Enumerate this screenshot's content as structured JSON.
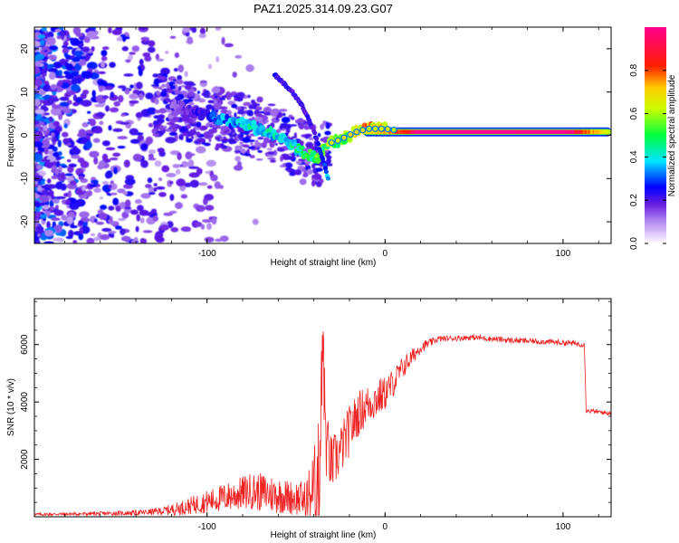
{
  "title": "PAZ1.2025.314.09.23.G07",
  "chart_data": [
    {
      "type": "heatmap",
      "title": "PAZ1.2025.314.09.23.G07",
      "xlabel": "Height of straight line (km)",
      "ylabel": "Frequency (Hz)",
      "xlim": [
        -197,
        127
      ],
      "ylim": [
        -25,
        25
      ],
      "xticks": [
        -100,
        0,
        100
      ],
      "xtick_labels": [
        "-100",
        "0",
        "100"
      ],
      "yticks": [
        -20,
        -10,
        0,
        10,
        20
      ],
      "ytick_labels": [
        "-20",
        "-10",
        "0",
        "10",
        "20"
      ],
      "main_branch": {
        "x": [
          -120,
          -105,
          -95,
          -85,
          -75,
          -65,
          -55,
          -45,
          -38,
          -32,
          -25,
          -18,
          -10,
          0,
          10,
          20,
          40,
          60,
          80,
          100,
          127
        ],
        "y": [
          7,
          5,
          4,
          3,
          2,
          0.5,
          -1.5,
          -4,
          -5,
          -2,
          -1,
          0.5,
          1.5,
          1.5,
          1,
          0.8,
          0.8,
          0.8,
          0.8,
          0.8,
          0.8
        ],
        "amplitude": [
          0.05,
          0.15,
          0.2,
          0.25,
          0.3,
          0.3,
          0.3,
          0.35,
          0.4,
          0.45,
          0.5,
          0.5,
          0.6,
          0.65,
          0.75,
          0.9,
          0.95,
          0.92,
          0.85,
          0.9,
          0.5
        ]
      },
      "secondary_branch": {
        "x": [
          -62,
          -57,
          -52,
          -47,
          -43,
          -40,
          -37,
          -34,
          -32
        ],
        "y": [
          14,
          12,
          10,
          7,
          4,
          1,
          -3,
          -7,
          -10
        ],
        "amplitude": [
          0.15,
          0.12,
          0.12,
          0.12,
          0.12,
          0.12,
          0.15,
          0.2,
          0.25
        ]
      },
      "colorbar": {
        "label": "Normalized spectral amplitude",
        "min": 0.0,
        "max": 1.0,
        "ticks": [
          0.0,
          0.2,
          0.4,
          0.6,
          0.8
        ],
        "tick_labels": [
          "0.0",
          "0.2",
          "0.4",
          "0.6",
          "0.8"
        ],
        "colors": [
          "#ffffff",
          "#b38cf0",
          "#6a1ee0",
          "#0000ff",
          "#00e5ff",
          "#00ff40",
          "#c8ff00",
          "#ffcc00",
          "#ff2000",
          "#ff0090"
        ]
      }
    },
    {
      "type": "line",
      "xlabel": "Height of straight line (km)",
      "ylabel": "SNR (10 * v/v)",
      "xlim": [
        -197,
        127
      ],
      "ylim": [
        0,
        7600
      ],
      "xticks": [
        -100,
        0,
        100
      ],
      "xtick_labels": [
        "-100",
        "0",
        "100"
      ],
      "yticks": [
        2000,
        4000,
        6000
      ],
      "ytick_labels": [
        "2000",
        "4000",
        "6000"
      ],
      "line_color": "#ee2222",
      "series": [
        {
          "name": "SNR",
          "x": [
            -197,
            -170,
            -150,
            -135,
            -125,
            -115,
            -105,
            -95,
            -85,
            -75,
            -65,
            -55,
            -45,
            -40,
            -37,
            -35,
            -33,
            -30,
            -25,
            -20,
            -15,
            -10,
            -5,
            0,
            5,
            10,
            20,
            30,
            50,
            70,
            90,
            105,
            112,
            113,
            120,
            127
          ],
          "y": [
            80,
            100,
            120,
            150,
            200,
            300,
            450,
            600,
            750,
            900,
            800,
            700,
            600,
            900,
            1500,
            5500,
            2500,
            1800,
            2300,
            3000,
            3600,
            3900,
            4100,
            4300,
            4700,
            5200,
            5900,
            6200,
            6250,
            6150,
            6100,
            6050,
            6000,
            3700,
            3650,
            3600
          ],
          "noise": [
            50,
            60,
            80,
            100,
            150,
            250,
            350,
            450,
            550,
            650,
            700,
            600,
            650,
            1500,
            2000,
            1500,
            1200,
            1000,
            900,
            900,
            800,
            700,
            700,
            600,
            500,
            400,
            200,
            100,
            100,
            100,
            100,
            100,
            100,
            80,
            80,
            80
          ]
        }
      ]
    }
  ]
}
